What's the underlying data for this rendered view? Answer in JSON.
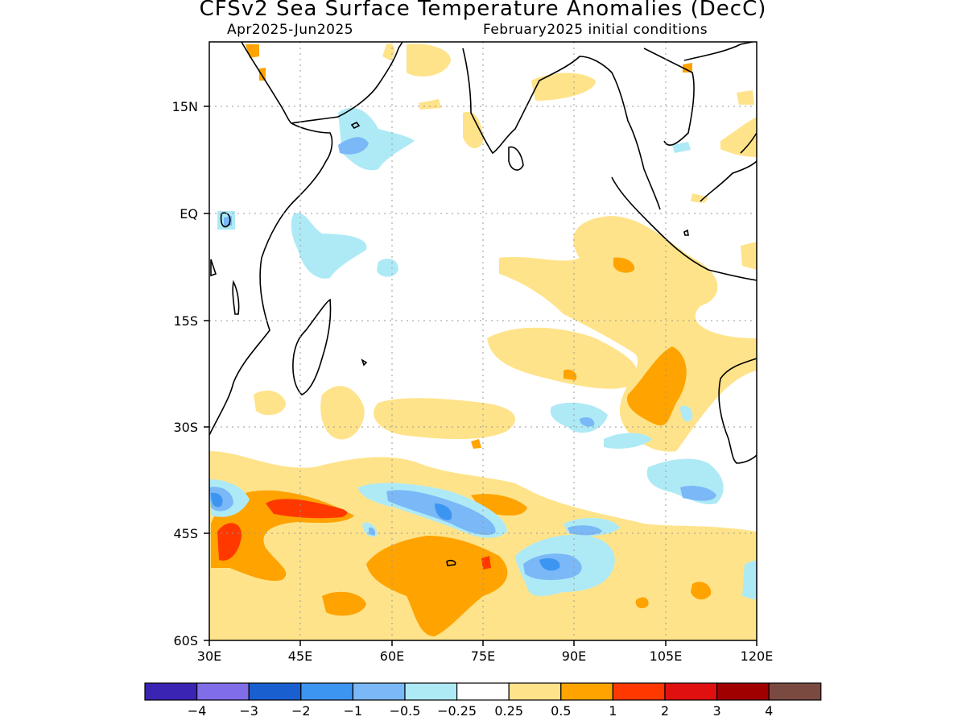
{
  "title": "CFSv2 Sea Surface Temperature Anomalies (DecC)",
  "subtitle_left": "Apr2025-Jun2025",
  "subtitle_right": "February2025 initial conditions",
  "map": {
    "region": "Indian Ocean",
    "lon_range": [
      30,
      120
    ],
    "lat_range": [
      -60,
      24
    ],
    "lon_ticks": [
      "30E",
      "45E",
      "60E",
      "75E",
      "90E",
      "105E",
      "120E"
    ],
    "lat_ticks": [
      "15N",
      "EQ",
      "15S",
      "30S",
      "45S",
      "60S"
    ],
    "grid": "dotted"
  },
  "colorbar": {
    "colors": [
      "#3a24b4",
      "#7f6ee8",
      "#1a5fd0",
      "#3d95f2",
      "#7ab8f7",
      "#aeeaf6",
      "#ffffff",
      "#ffe38a",
      "#ffa300",
      "#ff3800",
      "#e01010",
      "#a00000",
      "#7a4a40"
    ],
    "labels": [
      "-4",
      "-3",
      "-2",
      "-1",
      "-0.5",
      "-0.25",
      "0.25",
      "0.5",
      "1",
      "2",
      "3",
      "4"
    ]
  },
  "anomaly_features": [
    {
      "area": "Southwest Indian Ocean 40-48S, 30-55E",
      "level": "2"
    },
    {
      "area": "South Indian Ocean 45-60S, 60-80E",
      "level": "1"
    },
    {
      "area": "Off west Australia 20-30S, 100-110E",
      "level": "1"
    },
    {
      "area": "South Indian Ocean 40-45S, 55-75E",
      "level": "-1"
    },
    {
      "area": "South Indian Ocean 48S, 80-95E",
      "level": "-1"
    },
    {
      "area": "Arabian Sea 12N, 55-65E",
      "level": "-1"
    }
  ]
}
